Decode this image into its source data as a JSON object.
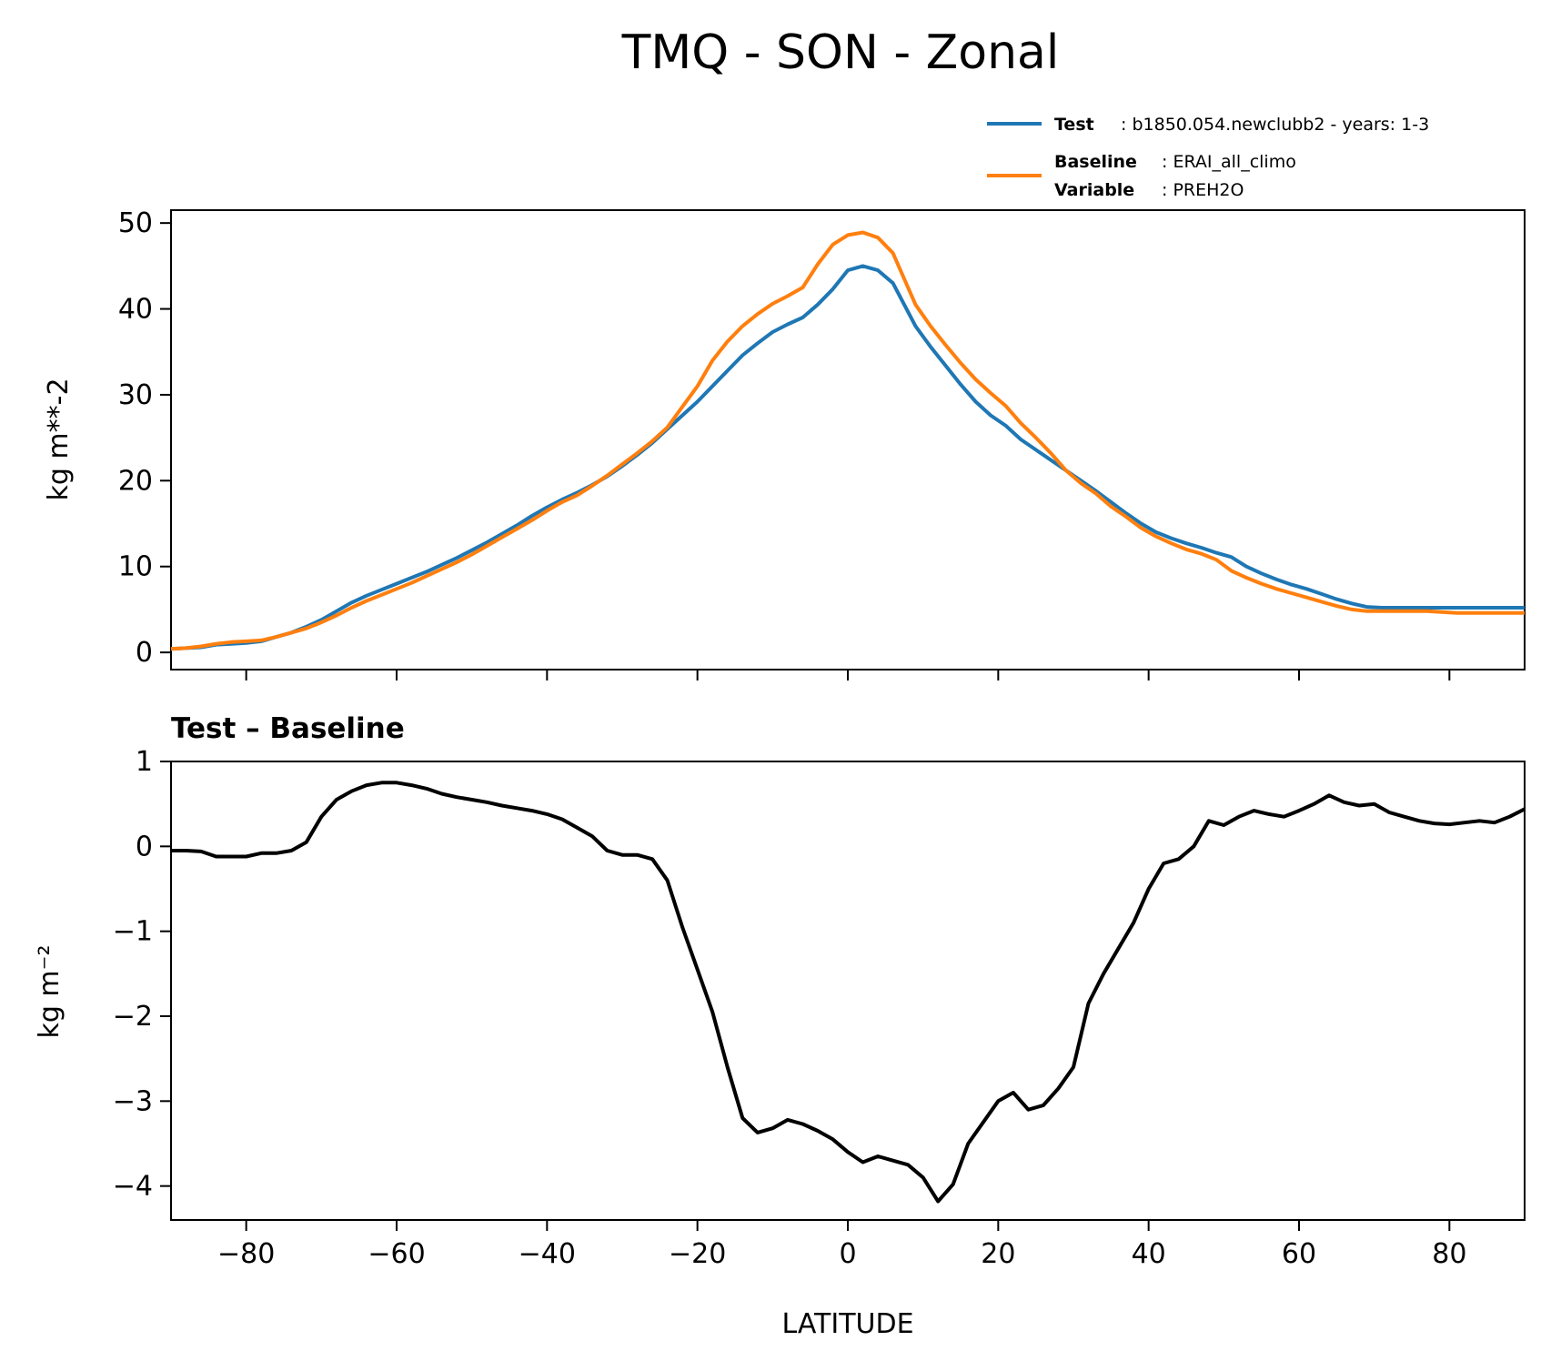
{
  "figure": {
    "title": "TMQ - SON - Zonal"
  },
  "colors": {
    "test": "#1f77b4",
    "baseline": "#ff7f0e",
    "diff": "#000000"
  },
  "legend": {
    "placement": "upper-right, above top panel",
    "test_key": "Test",
    "test_value": "b1850.054.newclubb2 - years: 1-3",
    "baseline_key": "Baseline",
    "baseline_value": "ERAI_all_climo",
    "variable_key": "Variable",
    "variable_value": "PREH2O"
  },
  "chart_data": [
    {
      "type": "line",
      "ylabel": "kg m**-2",
      "xlim": [
        -90,
        90
      ],
      "ylim": [
        -2,
        51.5
      ],
      "yticks": [
        0,
        10,
        20,
        30,
        40,
        50
      ],
      "xticks": [
        -80,
        -60,
        -40,
        -20,
        0,
        20,
        40,
        60,
        80
      ],
      "grid": false,
      "x": [
        -90,
        -88,
        -86,
        -84,
        -82,
        -80,
        -78,
        -76,
        -74,
        -72,
        -70,
        -68,
        -66,
        -64,
        -62,
        -60,
        -58,
        -56,
        -54,
        -52,
        -50,
        -48,
        -46,
        -44,
        -42,
        -40,
        -38,
        -36,
        -34,
        -32,
        -30,
        -28,
        -26,
        -24,
        -22,
        -20,
        -18,
        -16,
        -14,
        -12,
        -10,
        -8,
        -6,
        -4,
        -2,
        0,
        2,
        4,
        6,
        7.5,
        9,
        11,
        13,
        15,
        17,
        19,
        21,
        23,
        25,
        27,
        29,
        31,
        33,
        35,
        37,
        39,
        41,
        43,
        45,
        47,
        49,
        51,
        53,
        55,
        57,
        59,
        61,
        63,
        65,
        67,
        69,
        71,
        73,
        75,
        77,
        79,
        81,
        83,
        85,
        87,
        90
      ],
      "series": [
        {
          "name": "Test",
          "color_key": "test",
          "values": [
            0.4,
            0.5,
            0.6,
            0.9,
            1.0,
            1.1,
            1.3,
            1.8,
            2.3,
            3.0,
            3.8,
            4.8,
            5.8,
            6.6,
            7.3,
            8.0,
            8.7,
            9.4,
            10.2,
            11.0,
            11.9,
            12.8,
            13.8,
            14.8,
            15.9,
            16.9,
            17.8,
            18.6,
            19.5,
            20.5,
            21.7,
            23.0,
            24.4,
            26.0,
            27.6,
            29.2,
            31.0,
            32.8,
            34.6,
            36.0,
            37.3,
            38.2,
            39.0,
            40.5,
            42.3,
            44.5,
            45.0,
            44.5,
            43.0,
            40.5,
            38.0,
            35.6,
            33.4,
            31.2,
            29.2,
            27.6,
            26.4,
            24.8,
            23.6,
            22.4,
            21.2,
            20.0,
            18.8,
            17.5,
            16.2,
            15.0,
            14.0,
            13.3,
            12.7,
            12.2,
            11.6,
            11.1,
            10.0,
            9.2,
            8.5,
            7.9,
            7.4,
            6.8,
            6.2,
            5.7,
            5.3,
            5.2,
            5.2,
            5.2,
            5.2,
            5.2,
            5.2,
            5.2,
            5.2,
            5.2,
            5.2
          ]
        },
        {
          "name": "Baseline",
          "color_key": "baseline",
          "values": [
            0.4,
            0.5,
            0.7,
            1.0,
            1.2,
            1.3,
            1.4,
            1.8,
            2.3,
            2.8,
            3.5,
            4.3,
            5.2,
            6.0,
            6.7,
            7.4,
            8.1,
            8.9,
            9.7,
            10.5,
            11.4,
            12.4,
            13.4,
            14.4,
            15.4,
            16.5,
            17.5,
            18.3,
            19.4,
            20.6,
            21.9,
            23.2,
            24.6,
            26.2,
            28.6,
            31.0,
            34.0,
            36.2,
            38.0,
            39.4,
            40.6,
            41.5,
            42.5,
            45.2,
            47.5,
            48.6,
            48.9,
            48.3,
            46.5,
            43.5,
            40.5,
            38.0,
            35.8,
            33.7,
            31.8,
            30.2,
            28.7,
            26.7,
            25.0,
            23.2,
            21.2,
            19.7,
            18.5,
            17.0,
            15.8,
            14.5,
            13.5,
            12.7,
            12.0,
            11.5,
            10.8,
            9.5,
            8.7,
            8.0,
            7.4,
            6.9,
            6.4,
            5.9,
            5.4,
            5.0,
            4.8,
            4.8,
            4.8,
            4.8,
            4.8,
            4.7,
            4.6,
            4.6,
            4.6,
            4.6,
            4.6
          ]
        }
      ]
    },
    {
      "type": "line",
      "title": "Test – Baseline",
      "xlabel": "LATITUDE",
      "ylabel": "kg m⁻²",
      "xlim": [
        -90,
        90
      ],
      "ylim": [
        -4.4,
        1.0
      ],
      "yticks": [
        1,
        0,
        -1,
        -2,
        -3,
        -4
      ],
      "ytick_labels": [
        "1",
        "0",
        "−1",
        "−2",
        "−3",
        "−4"
      ],
      "xticks": [
        -80,
        -60,
        -40,
        -20,
        0,
        20,
        40,
        60,
        80
      ],
      "xtick_labels": [
        "−80",
        "−60",
        "−40",
        "−20",
        "0",
        "20",
        "40",
        "60",
        "80"
      ],
      "grid": false,
      "x": [
        -90,
        -88,
        -86,
        -84,
        -82,
        -80,
        -78,
        -76,
        -74,
        -72,
        -70,
        -68,
        -66,
        -64,
        -62,
        -60,
        -58,
        -56,
        -54,
        -52,
        -50,
        -48,
        -46,
        -44,
        -42,
        -40,
        -38,
        -36,
        -34,
        -32,
        -30,
        -28,
        -26,
        -24,
        -22,
        -20,
        -18,
        -16,
        -14,
        -12,
        -10,
        -8,
        -6,
        -4,
        -2,
        0,
        2,
        4,
        6,
        8,
        10,
        12,
        14,
        16,
        18,
        20,
        22,
        24,
        26,
        28,
        30,
        32,
        34,
        36,
        38,
        40,
        42,
        44,
        46,
        48,
        50,
        52,
        54,
        56,
        58,
        60,
        62,
        64,
        66,
        68,
        70,
        72,
        74,
        76,
        78,
        80,
        82,
        84,
        86,
        88,
        90
      ],
      "series": [
        {
          "name": "Test – Baseline",
          "color_key": "diff",
          "values": [
            -0.05,
            -0.05,
            -0.06,
            -0.12,
            -0.12,
            -0.12,
            -0.08,
            -0.08,
            -0.05,
            0.05,
            0.35,
            0.55,
            0.65,
            0.72,
            0.75,
            0.75,
            0.72,
            0.68,
            0.62,
            0.58,
            0.55,
            0.52,
            0.48,
            0.45,
            0.42,
            0.38,
            0.32,
            0.22,
            0.12,
            -0.05,
            -0.1,
            -0.1,
            -0.15,
            -0.4,
            -0.95,
            -1.45,
            -1.95,
            -2.6,
            -3.2,
            -3.37,
            -3.32,
            -3.22,
            -3.27,
            -3.35,
            -3.45,
            -3.6,
            -3.72,
            -3.65,
            -3.7,
            -3.75,
            -3.9,
            -4.18,
            -3.98,
            -3.5,
            -3.25,
            -3.0,
            -2.9,
            -3.1,
            -3.05,
            -2.85,
            -2.6,
            -1.85,
            -1.5,
            -1.2,
            -0.9,
            -0.5,
            -0.2,
            -0.15,
            0.0,
            0.3,
            0.25,
            0.35,
            0.42,
            0.38,
            0.35,
            0.42,
            0.5,
            0.6,
            0.52,
            0.48,
            0.5,
            0.4,
            0.35,
            0.3,
            0.27,
            0.26,
            0.28,
            0.3,
            0.28,
            0.35,
            0.44
          ]
        }
      ]
    }
  ]
}
